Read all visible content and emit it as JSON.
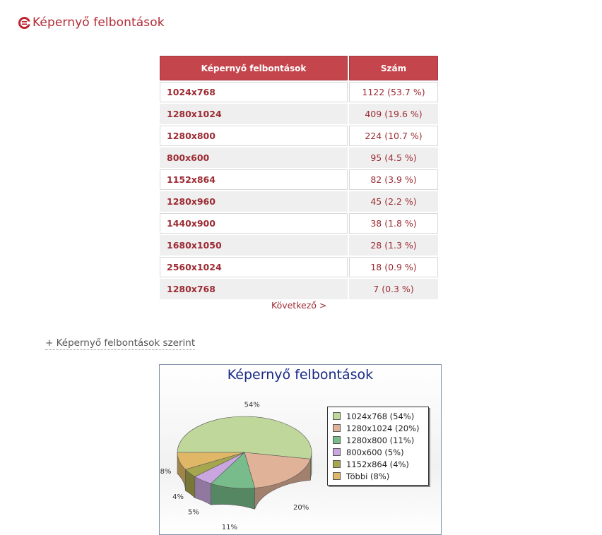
{
  "header": {
    "title": "Képernyő felbontások"
  },
  "table": {
    "col1_header": "Képernyő felbontások",
    "col2_header": "Szám",
    "rows": [
      {
        "resolution": "1024x768",
        "count": "1122 (53.7 %)"
      },
      {
        "resolution": "1280x1024",
        "count": "409 (19.6 %)"
      },
      {
        "resolution": "1280x800",
        "count": "224 (10.7 %)"
      },
      {
        "resolution": "800x600",
        "count": "95 (4.5 %)"
      },
      {
        "resolution": "1152x864",
        "count": "82 (3.9 %)"
      },
      {
        "resolution": "1280x960",
        "count": "45 (2.2 %)"
      },
      {
        "resolution": "1440x900",
        "count": "38 (1.8 %)"
      },
      {
        "resolution": "1680x1050",
        "count": "28 (1.3 %)"
      },
      {
        "resolution": "2560x1024",
        "count": "18 (0.9 %)"
      },
      {
        "resolution": "1280x768",
        "count": "7 (0.3 %)"
      }
    ]
  },
  "pagination": {
    "next_label": "Következő >"
  },
  "toggle": {
    "label": "+ Képernyő felbontások szerint"
  },
  "chart_data": {
    "type": "pie",
    "title": "Képernyő felbontások",
    "categories": [
      "1024x768",
      "1280x1024",
      "1280x800",
      "800x600",
      "1152x864",
      "Többi"
    ],
    "values": [
      54,
      20,
      11,
      5,
      4,
      8
    ],
    "slice_labels": [
      "54%",
      "20%",
      "11%",
      "5%",
      "4%",
      "8%"
    ],
    "legend_labels": [
      "1024x768 (54%)",
      "1280x1024 (20%)",
      "1280x800 (11%)",
      "800x600 (5%)",
      "1152x864 (4%)",
      "Többi (8%)"
    ],
    "colors": [
      "#bfd79b",
      "#e0b298",
      "#77bc8a",
      "#c9a6e0",
      "#a5a64e",
      "#dfb767"
    ],
    "legend_position": "right"
  }
}
